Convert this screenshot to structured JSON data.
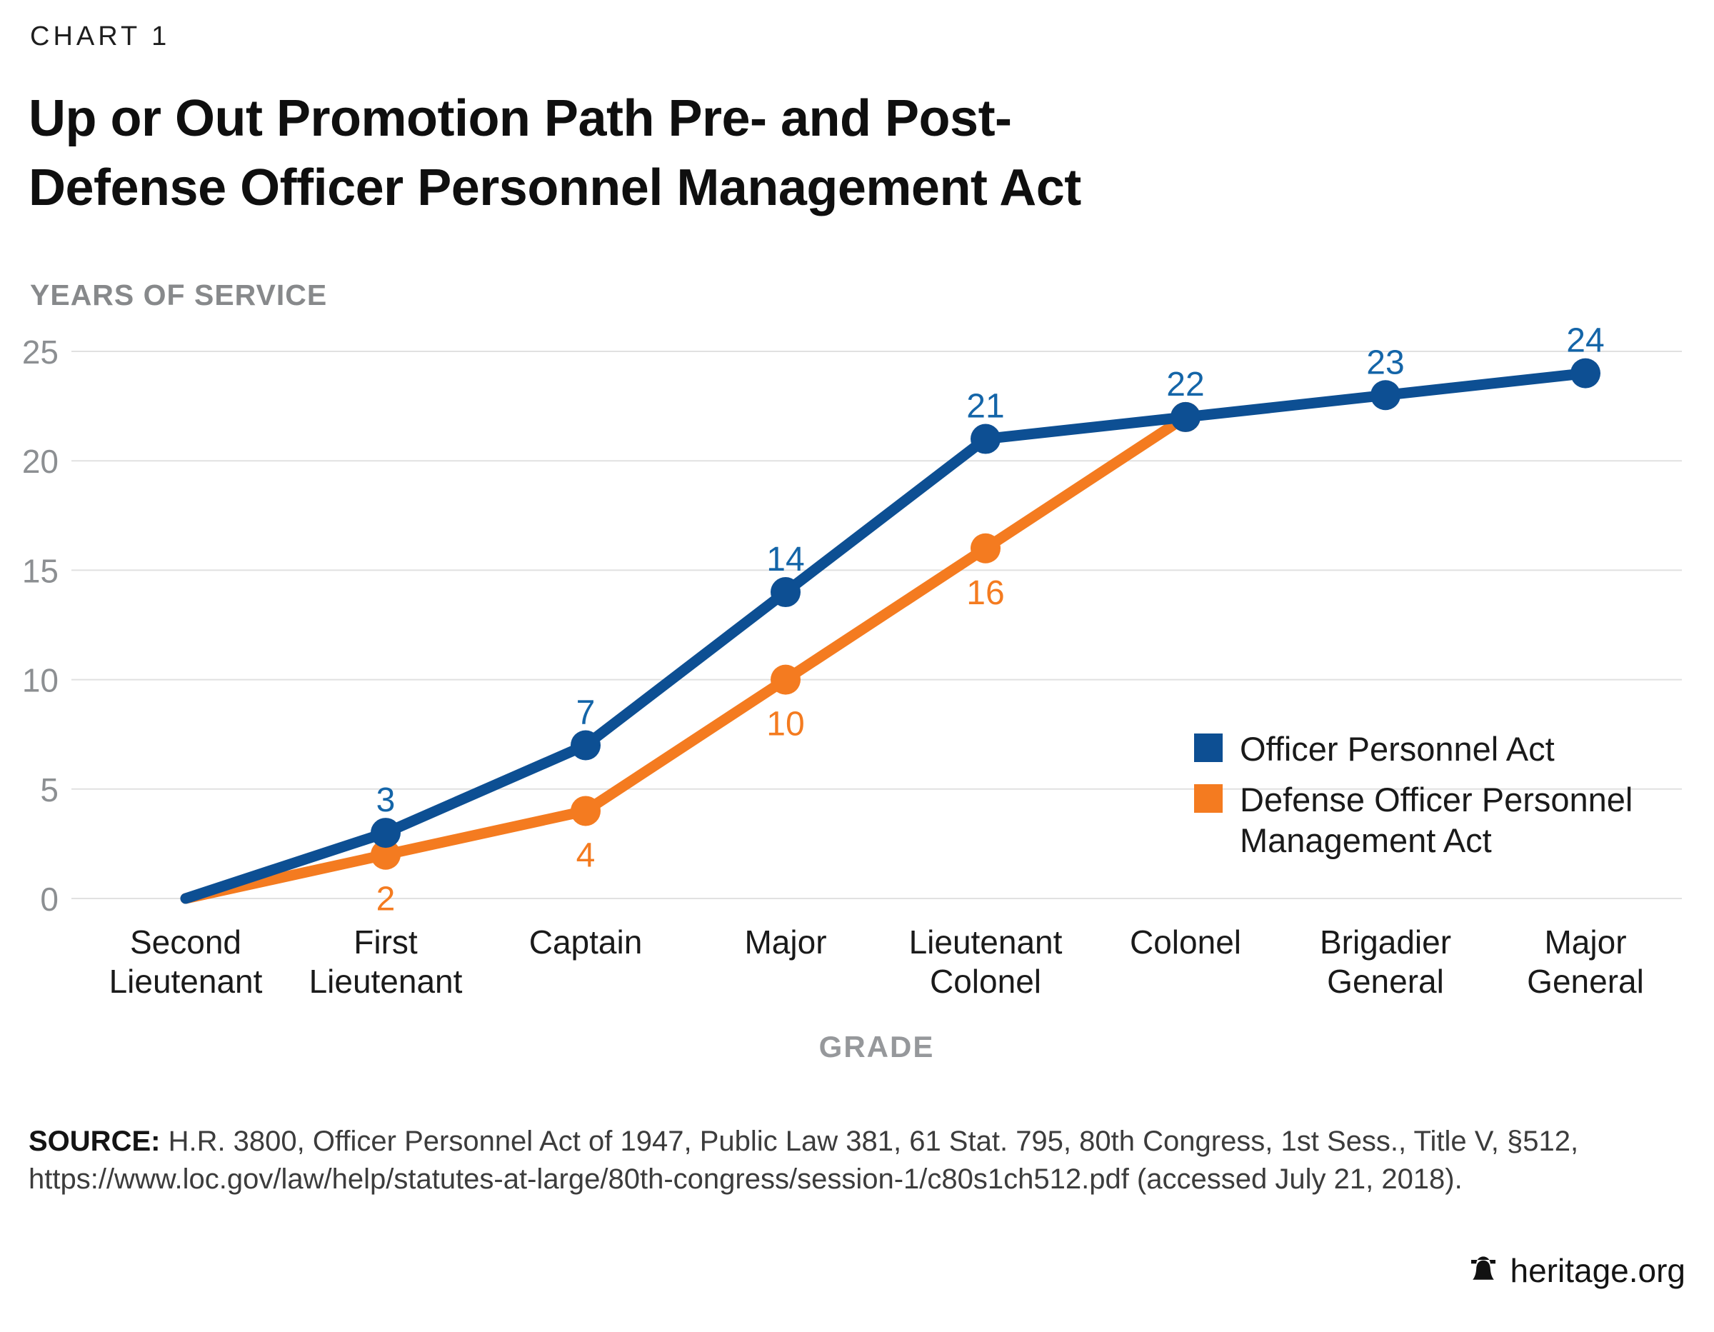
{
  "header": {
    "eyebrow": "CHART 1",
    "title_lines": [
      "Up or Out Promotion Path Pre- and Post-",
      "Defense Officer Personnel Management Act"
    ]
  },
  "chart_data": {
    "type": "line",
    "title": "Up or Out Promotion Path Pre- and Post-Defense Officer Personnel Management Act",
    "ylabel": "YEARS OF SERVICE",
    "xlabel": "GRADE",
    "ylim": [
      0,
      25
    ],
    "yticks": [
      0,
      5,
      10,
      15,
      20,
      25
    ],
    "grid": true,
    "legend_position": "right-middle",
    "categories": [
      "Second Lieutenant",
      "First Lieutenant",
      "Captain",
      "Major",
      "Lieutenant Colonel",
      "Colonel",
      "Brigadier General",
      "Major General"
    ],
    "category_lines": [
      [
        "Second",
        "Lieutenant"
      ],
      [
        "First",
        "Lieutenant"
      ],
      [
        "Captain"
      ],
      [
        "Major"
      ],
      [
        "Lieutenant",
        "Colonel"
      ],
      [
        "Colonel"
      ],
      [
        "Brigadier",
        "General"
      ],
      [
        "Major",
        "General"
      ]
    ],
    "series": [
      {
        "name": "Officer Personnel Act",
        "legend_lines": [
          "Officer Personnel Act"
        ],
        "color": "#0D4F93",
        "label_color": "#1465A8",
        "label_side": "above",
        "values": [
          0,
          3,
          7,
          14,
          21,
          22,
          23,
          24
        ],
        "labels": [
          null,
          "3",
          "7",
          "14",
          "21",
          "22",
          "23",
          "24"
        ]
      },
      {
        "name": "Defense Officer Personnel Management Act",
        "legend_lines": [
          "Defense Officer Personnel",
          "Management Act"
        ],
        "color": "#F47B20",
        "label_color": "#F47B20",
        "label_side": "below",
        "values": [
          0,
          2,
          4,
          10,
          16,
          22,
          null,
          null
        ],
        "labels": [
          null,
          "2",
          "4",
          "10",
          "16",
          null,
          null,
          null
        ]
      }
    ]
  },
  "style": {
    "grid_color": "#E1E1E1",
    "tick_text_color": "#8C8F92",
    "axis_text_color": "#1A1A1A",
    "muted_label_color": "#96989B"
  },
  "source": {
    "label": "SOURCE:",
    "line1": " H.R. 3800, Officer Personnel Act of 1947, Public Law 381, 61 Stat. 795, 80th Congress, 1st Sess., Title V, §512,",
    "line2": "https://www.loc.gov/law/help/statutes-at-large/80th-congress/session-1/c80s1ch512.pdf (accessed July 21, 2018)."
  },
  "footer": {
    "brand": "heritage.org"
  }
}
